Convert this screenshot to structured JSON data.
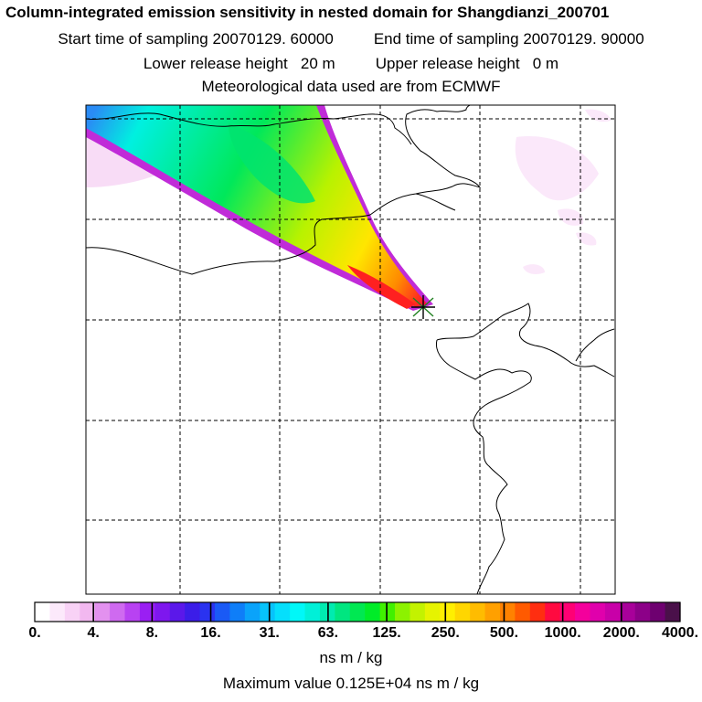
{
  "header": {
    "title": "Column-integrated emission sensitivity in nested domain for Shangdianzi_200701",
    "start_label": "Start time of sampling",
    "start_value": "20070129. 60000",
    "end_label": "End time of sampling",
    "end_value": "20070129. 90000",
    "lower_label": "Lower release height",
    "lower_value": "20 m",
    "upper_label": "Upper release height",
    "upper_value": "0 m",
    "met_text": "Meteorological data used are from ECMWF"
  },
  "chart_data": {
    "type": "heatmap",
    "title": "Column-integrated emission sensitivity in nested domain for Shangdianzi_200701",
    "grid": true,
    "release_site_marker": "x",
    "colorbar": {
      "unit": "ns m / kg",
      "tick_labels": [
        "0.",
        "4.",
        "8.",
        "16.",
        "31.",
        "63.",
        "125.",
        "250.",
        "500.",
        "1000.",
        "2000.",
        "4000."
      ],
      "colors": [
        "#ffffff",
        "#fce9fb",
        "#f8d2f6",
        "#f2b8f0",
        "#e391ef",
        "#cf6af0",
        "#b842f2",
        "#9a1ff3",
        "#7e17ee",
        "#5b18ea",
        "#3b1de8",
        "#2a33f0",
        "#1a5af5",
        "#0f7ef8",
        "#0aa3fa",
        "#07c3fb",
        "#05dffc",
        "#00f8f8",
        "#00f0d8",
        "#00ebb0",
        "#00e680",
        "#00e852",
        "#00ec28",
        "#40f000",
        "#8cf200",
        "#c3f200",
        "#e6f300",
        "#ffef00",
        "#ffd600",
        "#ffbc00",
        "#ffa000",
        "#ff8200",
        "#ff5a00",
        "#ff2e10",
        "#ff0a40",
        "#ff0074",
        "#f4009c",
        "#e000ac",
        "#c800a8",
        "#a8009a",
        "#8c0088",
        "#6e0070",
        "#4a104a"
      ]
    },
    "max_value_text": "Maximum value  0.125E+04 ns m / kg"
  }
}
